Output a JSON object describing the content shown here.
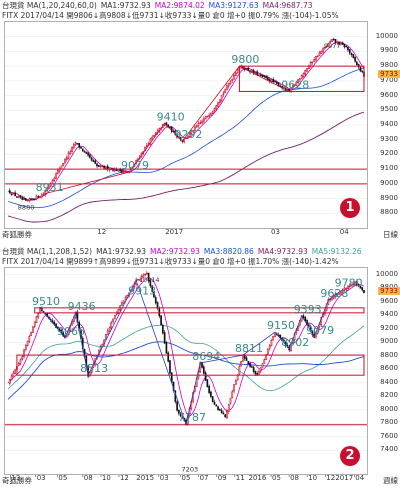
{
  "chart_data": [
    {
      "type": "candlestick",
      "header_line1": [
        {
          "text": "台現貨 MA(1,20,240,60,0)",
          "color": "#333333"
        },
        {
          "text": "MA1:9732.93",
          "color": "#333333"
        },
        {
          "text": "MA2:9874.02",
          "color": "#cc00cc"
        },
        {
          "text": "MA3:9127.63",
          "color": "#1a4fd6"
        },
        {
          "text": "MA4:9687.73",
          "color": "#7a1f6b"
        }
      ],
      "header_line2": [
        {
          "text": "FITX 2017/04/14 開9806↓高9808↓低9731↓收9733↓量0 倉0 增+0 振0.79% 漲(-104)-1.05%",
          "color": "#333333"
        }
      ],
      "footer_left": "奇狐勝券",
      "footer_right": "日線",
      "badge": "1",
      "last_price_tag": "9733",
      "ylim": [
        8700,
        10100
      ],
      "yticks": [
        8800,
        8900,
        9000,
        9100,
        9200,
        9300,
        9400,
        9500,
        9600,
        9700,
        9800,
        9900,
        10000
      ],
      "xticks": [
        {
          "pos": 0.27,
          "label": "12"
        },
        {
          "pos": 0.47,
          "label": "2017"
        },
        {
          "pos": 0.75,
          "label": "03"
        },
        {
          "pos": 0.94,
          "label": "04"
        }
      ],
      "anchors": [
        [
          0,
          8950
        ],
        [
          10,
          8880
        ],
        [
          20,
          8931
        ],
        [
          38,
          9280
        ],
        [
          50,
          9120
        ],
        [
          68,
          9079
        ],
        [
          80,
          9300
        ],
        [
          88,
          9410
        ],
        [
          98,
          9292
        ],
        [
          115,
          9500
        ],
        [
          130,
          9800
        ],
        [
          148,
          9700
        ],
        [
          158,
          9628
        ],
        [
          172,
          9850
        ],
        [
          182,
          9977
        ],
        [
          190,
          9930
        ],
        [
          200,
          9733
        ]
      ],
      "annotations": [
        {
          "label": "8880",
          "i": 10,
          "value": 8880,
          "small": true
        },
        {
          "label": "8931",
          "i": 20,
          "value": 8931
        },
        {
          "label": "9079",
          "i": 68,
          "value": 9079
        },
        {
          "label": "9410",
          "i": 88,
          "value": 9410
        },
        {
          "label": "9292",
          "i": 98,
          "value": 9292
        },
        {
          "label": "9800",
          "i": 130,
          "value": 9800
        },
        {
          "label": "9628",
          "i": 158,
          "value": 9628
        },
        {
          "label": "9977",
          "i": 182,
          "value": 9977,
          "small": true
        }
      ],
      "hlines": [
        9100,
        9000
      ],
      "boxes": [
        {
          "i0": 130,
          "i1": 200,
          "top": 9800,
          "bottom": 9628
        }
      ]
    },
    {
      "type": "candlestick",
      "header_line1": [
        {
          "text": "台現貨 MA(1,1,208,1,52)",
          "color": "#333333"
        },
        {
          "text": "MA1:9732.93",
          "color": "#333333"
        },
        {
          "text": "MA2:9732.93",
          "color": "#cc00cc"
        },
        {
          "text": "MA3:8820.86",
          "color": "#1a4fd6"
        },
        {
          "text": "MA4:9732.93",
          "color": "#7a1f6b"
        },
        {
          "text": "MA5:9132.26",
          "color": "#40a0a0"
        }
      ],
      "header_line2": [
        {
          "text": "FITX 2017/04/14 開9899↑高9899↓低9731↓收9733↓量0 倉0 增+0 振1.70% 漲(-140)-1.42%",
          "color": "#333333"
        }
      ],
      "footer_left": "奇狐勝券",
      "footer_right": "週線",
      "badge": "2",
      "last_price_tag": "9733",
      "ylim": [
        7050,
        10100
      ],
      "yticks": [
        7400,
        7600,
        7800,
        8000,
        8200,
        8400,
        8600,
        8800,
        9000,
        9200,
        9400,
        9600,
        9800,
        10000
      ],
      "xticks": [
        {
          "pos": 0.03,
          "label": "'13"
        },
        {
          "pos": 0.1,
          "label": "'03"
        },
        {
          "pos": 0.16,
          "label": "'05"
        },
        {
          "pos": 0.23,
          "label": "'08"
        },
        {
          "pos": 0.28,
          "label": "'10"
        },
        {
          "pos": 0.33,
          "label": "'12"
        },
        {
          "pos": 0.39,
          "label": "2015"
        },
        {
          "pos": 0.44,
          "label": "'03"
        },
        {
          "pos": 0.5,
          "label": "'05"
        },
        {
          "pos": 0.55,
          "label": "'07"
        },
        {
          "pos": 0.6,
          "label": "'09"
        },
        {
          "pos": 0.65,
          "label": "'11"
        },
        {
          "pos": 0.7,
          "label": "2016"
        },
        {
          "pos": 0.75,
          "label": "'05"
        },
        {
          "pos": 0.8,
          "label": "'08"
        },
        {
          "pos": 0.85,
          "label": "'10"
        },
        {
          "pos": 0.9,
          "label": "'12"
        },
        {
          "pos": 0.94,
          "label": "2017"
        },
        {
          "pos": 0.98,
          "label": "'04"
        }
      ],
      "anchors": [
        [
          0,
          8400
        ],
        [
          8,
          8800
        ],
        [
          18,
          9510
        ],
        [
          25,
          9300
        ],
        [
          32,
          9066
        ],
        [
          38,
          9436
        ],
        [
          45,
          8513
        ],
        [
          60,
          9400
        ],
        [
          72,
          9913
        ],
        [
          78,
          10014
        ],
        [
          85,
          9400
        ],
        [
          95,
          8000
        ],
        [
          100,
          7787
        ],
        [
          108,
          8694
        ],
        [
          115,
          8100
        ],
        [
          122,
          7900
        ],
        [
          132,
          8811
        ],
        [
          140,
          8500
        ],
        [
          150,
          9150
        ],
        [
          158,
          8902
        ],
        [
          165,
          9393
        ],
        [
          172,
          9079
        ],
        [
          180,
          9628
        ],
        [
          188,
          9780
        ],
        [
          195,
          9900
        ],
        [
          200,
          9733
        ]
      ],
      "annotations": [
        {
          "label": "9510",
          "i": 18,
          "value": 9510
        },
        {
          "label": "9436",
          "i": 38,
          "value": 9436
        },
        {
          "label": "9066",
          "i": 32,
          "value": 9066
        },
        {
          "label": "8513",
          "i": 45,
          "value": 8513
        },
        {
          "label": "9913",
          "i": 72,
          "value": 9913
        },
        {
          "label": "10014",
          "i": 78,
          "value": 10014,
          "small": true
        },
        {
          "label": "8694",
          "i": 108,
          "value": 8694
        },
        {
          "label": "7787",
          "i": 100,
          "value": 7787
        },
        {
          "label": "7203",
          "i": 102,
          "value": 7203,
          "small": true
        },
        {
          "label": "8811",
          "i": 132,
          "value": 8811
        },
        {
          "label": "9150",
          "i": 150,
          "value": 9150
        },
        {
          "label": "8902",
          "i": 158,
          "value": 8902
        },
        {
          "label": "9393",
          "i": 165,
          "value": 9393
        },
        {
          "label": "9079",
          "i": 172,
          "value": 9079
        },
        {
          "label": "9780",
          "i": 188,
          "value": 9780
        },
        {
          "label": "9628",
          "i": 180,
          "value": 9628
        }
      ],
      "hlines": [
        7780
      ],
      "boxes": [
        {
          "i0": 15,
          "i1": 200,
          "top": 9510,
          "bottom": 9436
        },
        {
          "i0": 5,
          "i1": 200,
          "top": 8811,
          "bottom": 8513
        }
      ]
    }
  ]
}
